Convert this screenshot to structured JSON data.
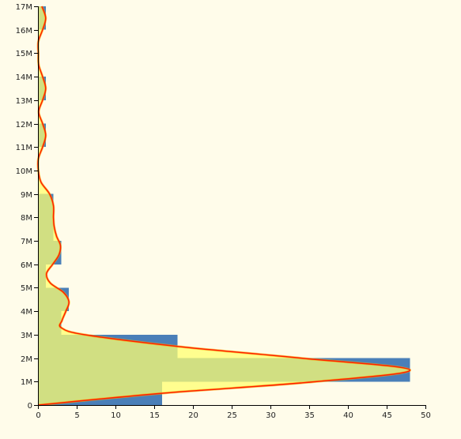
{
  "chart_data": {
    "type": "bar",
    "orientation": "horizontal",
    "title": "",
    "xlabel": "",
    "ylabel": "",
    "xlim": [
      0,
      50
    ],
    "ylim": [
      0,
      17000000
    ],
    "x_ticks": [
      0,
      5,
      10,
      15,
      20,
      25,
      30,
      35,
      40,
      45,
      50
    ],
    "x_tick_labels": [
      "0",
      "5",
      "10",
      "15",
      "20",
      "25",
      "30",
      "35",
      "40",
      "45",
      "50"
    ],
    "y_ticks": [
      0,
      1000000,
      2000000,
      3000000,
      4000000,
      5000000,
      6000000,
      7000000,
      8000000,
      9000000,
      10000000,
      11000000,
      12000000,
      13000000,
      14000000,
      15000000,
      16000000,
      17000000
    ],
    "y_tick_labels": [
      "0",
      "1M",
      "2M",
      "3M",
      "4M",
      "5M",
      "6M",
      "7M",
      "8M",
      "9M",
      "10M",
      "11M",
      "12M",
      "13M",
      "14M",
      "15M",
      "16M",
      "17M"
    ],
    "grid": false,
    "legend": "none",
    "bin_width": 1000000,
    "bins": [
      {
        "start": 0,
        "end": 1000000,
        "count": 16
      },
      {
        "start": 1000000,
        "end": 2000000,
        "count": 48
      },
      {
        "start": 2000000,
        "end": 3000000,
        "count": 18
      },
      {
        "start": 3000000,
        "end": 4000000,
        "count": 3
      },
      {
        "start": 4000000,
        "end": 5000000,
        "count": 4
      },
      {
        "start": 5000000,
        "end": 6000000,
        "count": 1
      },
      {
        "start": 6000000,
        "end": 7000000,
        "count": 3
      },
      {
        "start": 7000000,
        "end": 8000000,
        "count": 2
      },
      {
        "start": 8000000,
        "end": 9000000,
        "count": 2
      },
      {
        "start": 9000000,
        "end": 10000000,
        "count": 0
      },
      {
        "start": 10000000,
        "end": 11000000,
        "count": 0
      },
      {
        "start": 11000000,
        "end": 12000000,
        "count": 1
      },
      {
        "start": 12000000,
        "end": 13000000,
        "count": 0
      },
      {
        "start": 13000000,
        "end": 14000000,
        "count": 1
      },
      {
        "start": 14000000,
        "end": 15000000,
        "count": 0
      },
      {
        "start": 15000000,
        "end": 16000000,
        "count": 0
      },
      {
        "start": 16000000,
        "end": 17000000,
        "count": 1
      }
    ],
    "density_curve": [
      {
        "y": 0,
        "x": 0
      },
      {
        "y": 500000,
        "x": 16
      },
      {
        "y": 1000000,
        "x": 36
      },
      {
        "y": 1500000,
        "x": 48
      },
      {
        "y": 2000000,
        "x": 34
      },
      {
        "y": 2500000,
        "x": 18
      },
      {
        "y": 3000000,
        "x": 6
      },
      {
        "y": 3300000,
        "x": 3
      },
      {
        "y": 3600000,
        "x": 3.1
      },
      {
        "y": 4000000,
        "x": 3.6
      },
      {
        "y": 4400000,
        "x": 4
      },
      {
        "y": 4800000,
        "x": 3.3
      },
      {
        "y": 5200000,
        "x": 1.6
      },
      {
        "y": 5600000,
        "x": 1.1
      },
      {
        "y": 6000000,
        "x": 1.9
      },
      {
        "y": 6400000,
        "x": 2.7
      },
      {
        "y": 6800000,
        "x": 2.9
      },
      {
        "y": 7200000,
        "x": 2.4
      },
      {
        "y": 7600000,
        "x": 2.1
      },
      {
        "y": 8000000,
        "x": 2
      },
      {
        "y": 8500000,
        "x": 2
      },
      {
        "y": 9000000,
        "x": 1.5
      },
      {
        "y": 9500000,
        "x": 0.4
      },
      {
        "y": 10000000,
        "x": 0.05
      },
      {
        "y": 10500000,
        "x": 0.05
      },
      {
        "y": 11000000,
        "x": 0.6
      },
      {
        "y": 11500000,
        "x": 1
      },
      {
        "y": 12000000,
        "x": 0.6
      },
      {
        "y": 12500000,
        "x": 0.1
      },
      {
        "y": 13000000,
        "x": 0.6
      },
      {
        "y": 13500000,
        "x": 1
      },
      {
        "y": 14000000,
        "x": 0.6
      },
      {
        "y": 14500000,
        "x": 0.1
      },
      {
        "y": 15000000,
        "x": 0.05
      },
      {
        "y": 15500000,
        "x": 0.05
      },
      {
        "y": 16000000,
        "x": 0.6
      },
      {
        "y": 16500000,
        "x": 1
      },
      {
        "y": 17000000,
        "x": 0.5
      }
    ],
    "colors": {
      "bar": "#4a7fb8",
      "density_fill": "#ffff70",
      "density_fill_opacity": 0.75,
      "density_line": "#ff1f00",
      "density_outline": "#f5b000",
      "background": "#fffcea"
    }
  }
}
